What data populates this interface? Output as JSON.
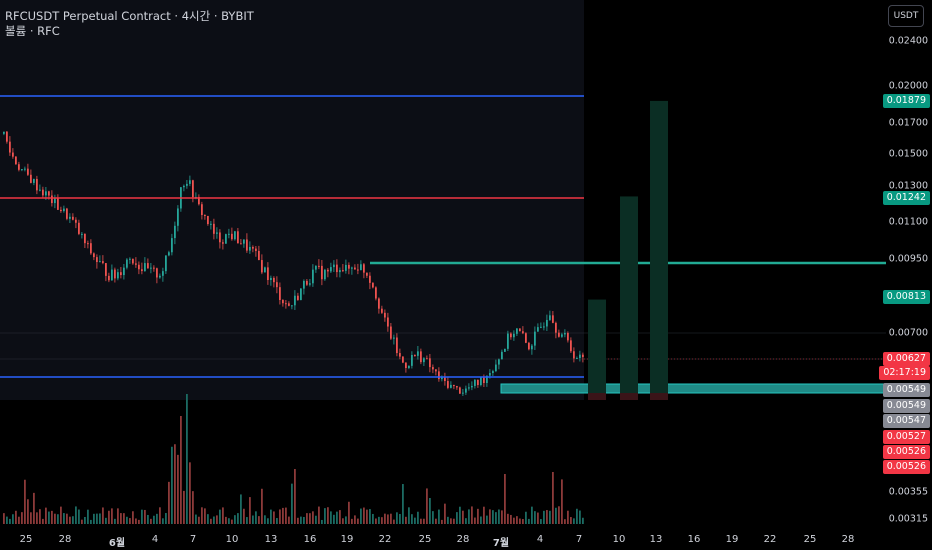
{
  "legend": {
    "symbol_line": "RFCUSDT Perpetual Contract · 4시간 · BYBIT",
    "volume_line": "볼륨 · RFC"
  },
  "currency_button": "USDT",
  "price_scale": {
    "labels": [
      "0.02400",
      "0.02000",
      "0.01700",
      "0.01500",
      "0.01300",
      "0.01100",
      "0.00950",
      "0.00700",
      "0.00355",
      "0.00315"
    ]
  },
  "price_badges": [
    {
      "text": "0.01879",
      "color": "#089981"
    },
    {
      "text": "0.01242",
      "color": "#089981"
    },
    {
      "text": "0.00813",
      "color": "#089981"
    },
    {
      "text": "0.00627",
      "color": "#f23645"
    },
    {
      "text": "02:17:19",
      "color": "#f23645"
    },
    {
      "text": "0.00549",
      "color": "#868993"
    },
    {
      "text": "0.00549",
      "color": "#868993"
    },
    {
      "text": "0.00547",
      "color": "#868993"
    },
    {
      "text": "0.00527",
      "color": "#f23645"
    },
    {
      "text": "0.00526",
      "color": "#f23645"
    },
    {
      "text": "0.00526",
      "color": "#f23645"
    }
  ],
  "time_scale": {
    "labels": [
      {
        "text": "25",
        "bold": false
      },
      {
        "text": "28",
        "bold": false
      },
      {
        "text": "6월",
        "bold": true
      },
      {
        "text": "4",
        "bold": false
      },
      {
        "text": "7",
        "bold": false
      },
      {
        "text": "10",
        "bold": false
      },
      {
        "text": "13",
        "bold": false
      },
      {
        "text": "16",
        "bold": false
      },
      {
        "text": "19",
        "bold": false
      },
      {
        "text": "22",
        "bold": false
      },
      {
        "text": "25",
        "bold": false
      },
      {
        "text": "28",
        "bold": false
      },
      {
        "text": "7월",
        "bold": true
      },
      {
        "text": "4",
        "bold": false
      },
      {
        "text": "7",
        "bold": false
      },
      {
        "text": "10",
        "bold": false
      },
      {
        "text": "13",
        "bold": false
      },
      {
        "text": "16",
        "bold": false
      },
      {
        "text": "19",
        "bold": false
      },
      {
        "text": "22",
        "bold": false
      },
      {
        "text": "25",
        "bold": false
      },
      {
        "text": "28",
        "bold": false
      }
    ]
  },
  "colors": {
    "up": "#26a69a",
    "down": "#ef5350",
    "blue_line": "#2962ff",
    "red_line": "#f23645",
    "teal_line": "#22ab94",
    "target_bar": "#0b2e24"
  },
  "chart_data": {
    "type": "candlestick",
    "symbol": "RFCUSDT Perpetual Contract",
    "interval": "4시간",
    "exchange": "BYBIT",
    "last_price": 0.00627,
    "countdown": "02:17:19",
    "horizontal_levels": [
      0.01879,
      0.01242,
      0.00813,
      0.00627,
      0.00549,
      0.00527
    ],
    "target_levels": [
      0.00813,
      0.01242,
      0.01879
    ],
    "price_path": [
      0.0163,
      0.0152,
      0.0146,
      0.0141,
      0.0137,
      0.0134,
      0.013,
      0.0127,
      0.0124,
      0.0121,
      0.0118,
      0.0115,
      0.0112,
      0.0108,
      0.0104,
      0.01,
      0.0097,
      0.0094,
      0.0092,
      0.009,
      0.0089,
      0.0091,
      0.0094,
      0.0096,
      0.0094,
      0.0092,
      0.0091,
      0.009,
      0.009,
      0.0092,
      0.0098,
      0.011,
      0.0128,
      0.0135,
      0.0129,
      0.012,
      0.0115,
      0.011,
      0.0105,
      0.0103,
      0.0104,
      0.0105,
      0.0104,
      0.0102,
      0.01,
      0.0098,
      0.0095,
      0.0092,
      0.0089,
      0.0086,
      0.0083,
      0.008,
      0.0079,
      0.0082,
      0.0085,
      0.0088,
      0.009,
      0.0091,
      0.009,
      0.0091,
      0.0092,
      0.0093,
      0.0091,
      0.0092,
      0.0093,
      0.0092,
      0.009,
      0.0086,
      0.008,
      0.0074,
      0.007,
      0.0066,
      0.0062,
      0.0061,
      0.0063,
      0.0064,
      0.0063,
      0.0061,
      0.0059,
      0.0057,
      0.0056,
      0.0055,
      0.0054,
      0.0053,
      0.0054,
      0.0055,
      0.0056,
      0.0057,
      0.0059,
      0.0061,
      0.0064,
      0.0067,
      0.007,
      0.0071,
      0.0069,
      0.0066,
      0.0068,
      0.0071,
      0.0074,
      0.0078,
      0.0072,
      0.007,
      0.0068,
      0.0065,
      0.0063,
      0.00627
    ]
  }
}
